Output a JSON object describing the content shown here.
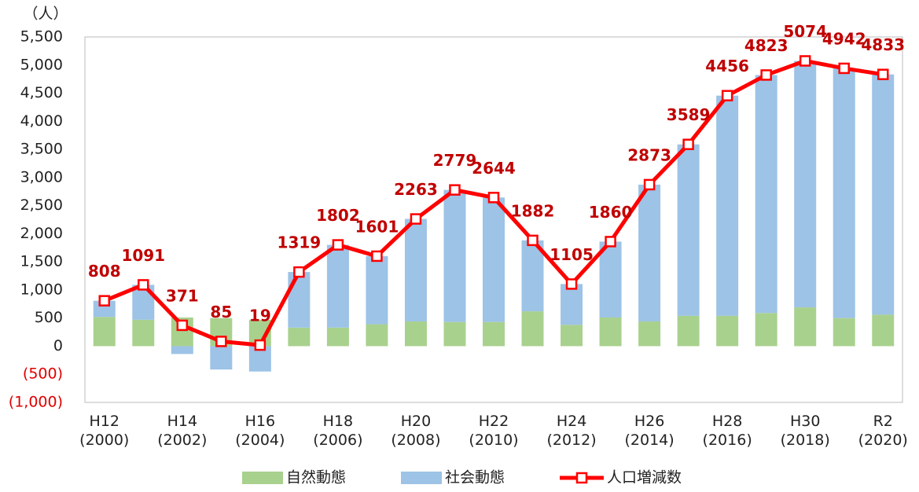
{
  "chart_data": {
    "type": "bar",
    "y_unit": "（人）",
    "categories": [
      "H12\n(2000)",
      null,
      "H14\n(2002)",
      null,
      "H16\n(2004)",
      null,
      "H18\n(2006)",
      null,
      "H20\n(2008)",
      null,
      "H22\n(2010)",
      null,
      "H24\n(2012)",
      null,
      "H26\n(2014)",
      null,
      "H28\n(2016)",
      null,
      "H30\n(2018)",
      null,
      "R2\n(2020)"
    ],
    "series": [
      {
        "name": "自然動態",
        "type": "bar",
        "color": "#a9d18e",
        "values": [
          520,
          470,
          510,
          500,
          470,
          330,
          330,
          390,
          440,
          430,
          430,
          620,
          380,
          510,
          440,
          540,
          540,
          590,
          690,
          500,
          560
        ]
      },
      {
        "name": "社会動態",
        "type": "bar",
        "color": "#9dc3e6",
        "values": [
          288,
          621,
          -139,
          -415,
          -451,
          989,
          1472,
          1211,
          1823,
          2349,
          2214,
          1262,
          725,
          1350,
          2433,
          3049,
          3916,
          4233,
          4384,
          4442,
          4273
        ]
      },
      {
        "name": "人口増減数",
        "type": "line",
        "color": "#ff0000",
        "values": [
          808,
          1091,
          371,
          85,
          19,
          1319,
          1802,
          1601,
          2263,
          2779,
          2644,
          1882,
          1105,
          1860,
          2873,
          3589,
          4456,
          4823,
          5074,
          4942,
          4833
        ]
      }
    ],
    "ylim": [
      -1000,
      5500
    ],
    "yticks": [
      {
        "value": -1000,
        "label": "(1,000)"
      },
      {
        "value": -500,
        "label": "(500)"
      },
      0,
      500,
      {
        "value": 1000,
        "label": "1,000"
      },
      {
        "value": 1500,
        "label": "1,500"
      },
      {
        "value": 2000,
        "label": "2,000"
      },
      {
        "value": 2500,
        "label": "2,500"
      },
      {
        "value": 3000,
        "label": "3,000"
      },
      {
        "value": 3500,
        "label": "3,500"
      },
      {
        "value": 4000,
        "label": "4,000"
      },
      {
        "value": 4500,
        "label": "4,500"
      },
      {
        "value": 5000,
        "label": "5,000"
      },
      {
        "value": 5500,
        "label": "5,500"
      }
    ],
    "negative_tick_color": "#e00000",
    "data_label_color": "#c00000",
    "grid": false
  }
}
